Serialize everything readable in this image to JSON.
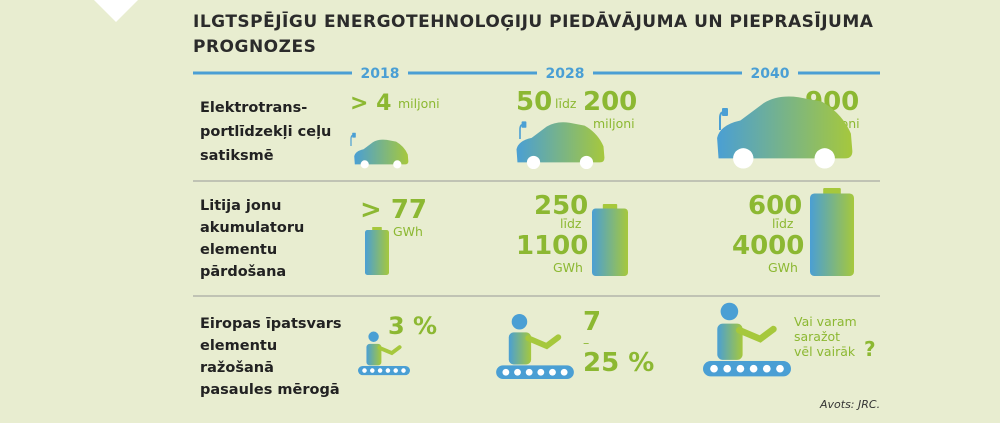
{
  "header": {
    "title": [
      "ILGTSPĒJĪGU ENERGOTEHNOLOĢIJU PIEDĀVĀJUMA UN PIEPRASĪJUMA",
      "PROGNOZES"
    ]
  },
  "years": [
    "2018",
    "2028",
    "2040"
  ],
  "rows": [
    {
      "label": [
        "Elektrotrans-",
        "portlīdzekļi ceļu",
        "satiksmē"
      ],
      "cells": [
        [
          "> 4",
          "miljoni"
        ],
        [
          "50",
          "līdz",
          "200",
          "miljoni"
        ],
        [
          "900",
          "miljoni"
        ]
      ]
    },
    {
      "label": [
        "Litija jonu",
        "akumulatoru",
        "elementu",
        "pārdošana"
      ],
      "cells": [
        [
          "> 77",
          "GWh"
        ],
        [
          "250",
          "līdz",
          "1100",
          "GWh"
        ],
        [
          "600",
          "līdz",
          "4000",
          "GWh"
        ]
      ]
    },
    {
      "label": [
        "Eiropas īpatsvars",
        "elementu",
        "ražošanā",
        "pasaules mērogā"
      ],
      "cells": [
        [
          "3 %"
        ],
        [
          "7",
          "–",
          "25 %"
        ],
        [
          "Vai varam",
          "saražot",
          "vēl vairāk",
          "?"
        ]
      ]
    }
  ],
  "source": "Avots: JRC."
}
